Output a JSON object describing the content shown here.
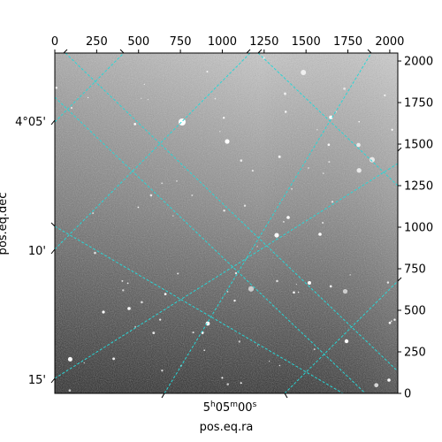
{
  "axes": {
    "xlabel": "pos.eq.ra",
    "ylabel": "pos.eq.dec",
    "top_pixel_ticks": [
      "0",
      "250",
      "500",
      "750",
      "1000",
      "1250",
      "1500",
      "1750",
      "2000"
    ],
    "right_pixel_ticks": [
      "0",
      "250",
      "500",
      "750",
      "1000",
      "1250",
      "1500",
      "1750",
      "2000"
    ],
    "ra_tick": {
      "hours": "5",
      "h": "h",
      "minutes": "05",
      "m": "m",
      "seconds": "00",
      "s": "s"
    },
    "dec_ticks": [
      "4°05'",
      "10'",
      "15'"
    ]
  },
  "image": {
    "pixel_range": [
      0,
      2048
    ],
    "colormap": "grayscale",
    "grid_color": "#29d6d6"
  }
}
